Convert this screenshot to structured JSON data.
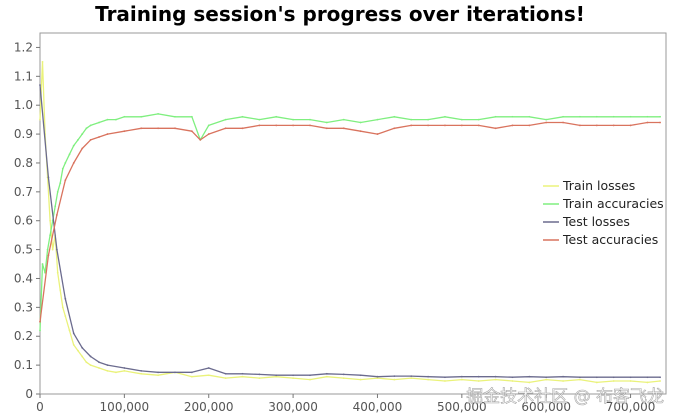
{
  "watermark": "掘金技术社区 @ 布客飞龙",
  "chart_data": {
    "type": "line",
    "title": "Training session's progress over iterations!",
    "xlabel": "",
    "ylabel": "",
    "xlim": [
      0,
      742000
    ],
    "ylim": [
      0,
      1.25
    ],
    "grid": false,
    "legend_position": "right",
    "x_ticks": [
      0,
      100000,
      200000,
      300000,
      400000,
      500000,
      600000,
      700000
    ],
    "x_tick_labels": [
      "0",
      "100,000",
      "200,000",
      "300,000",
      "400,000",
      "500,000",
      "600,000",
      "700,000"
    ],
    "y_ticks": [
      0,
      0.1,
      0.2,
      0.3,
      0.4,
      0.5,
      0.6,
      0.7,
      0.8,
      0.9,
      1.0,
      1.1,
      1.2
    ],
    "y_tick_labels": [
      "0",
      "0.1",
      "0.2",
      "0.3",
      "0.4",
      "0.5",
      "0.6",
      "0.7",
      "0.8",
      "0.9",
      "1.0",
      "1.1",
      "1.2"
    ],
    "series": [
      {
        "name": "Train losses",
        "color": "#eaf27a",
        "x": [
          0,
          3000,
          6000,
          9000,
          12000,
          15000,
          18000,
          21000,
          24000,
          27000,
          30000,
          35000,
          40000,
          45000,
          50000,
          55000,
          60000,
          70000,
          80000,
          90000,
          100000,
          120000,
          140000,
          160000,
          180000,
          200000,
          220000,
          240000,
          260000,
          280000,
          300000,
          320000,
          340000,
          360000,
          380000,
          400000,
          420000,
          440000,
          460000,
          480000,
          500000,
          520000,
          540000,
          560000,
          580000,
          600000,
          620000,
          640000,
          660000,
          680000,
          700000,
          720000,
          735000
        ],
        "y": [
          0.95,
          1.15,
          0.9,
          0.75,
          0.6,
          0.5,
          0.55,
          0.42,
          0.36,
          0.3,
          0.27,
          0.22,
          0.17,
          0.15,
          0.13,
          0.11,
          0.1,
          0.09,
          0.08,
          0.075,
          0.08,
          0.07,
          0.065,
          0.075,
          0.06,
          0.065,
          0.055,
          0.06,
          0.055,
          0.06,
          0.055,
          0.05,
          0.06,
          0.055,
          0.05,
          0.055,
          0.05,
          0.055,
          0.05,
          0.045,
          0.05,
          0.045,
          0.05,
          0.045,
          0.04,
          0.05,
          0.045,
          0.05,
          0.04,
          0.045,
          0.045,
          0.04,
          0.045
        ]
      },
      {
        "name": "Train accuracies",
        "color": "#7fef7f",
        "x": [
          0,
          3000,
          6000,
          9000,
          12000,
          15000,
          18000,
          21000,
          24000,
          27000,
          30000,
          35000,
          40000,
          45000,
          50000,
          55000,
          60000,
          70000,
          80000,
          90000,
          100000,
          120000,
          140000,
          160000,
          180000,
          190000,
          200000,
          220000,
          240000,
          260000,
          280000,
          300000,
          320000,
          340000,
          360000,
          380000,
          400000,
          420000,
          440000,
          460000,
          480000,
          500000,
          520000,
          540000,
          560000,
          580000,
          600000,
          620000,
          640000,
          660000,
          680000,
          700000,
          720000,
          735000
        ],
        "y": [
          0.22,
          0.45,
          0.42,
          0.5,
          0.55,
          0.6,
          0.65,
          0.7,
          0.73,
          0.78,
          0.8,
          0.83,
          0.86,
          0.88,
          0.9,
          0.92,
          0.93,
          0.94,
          0.95,
          0.95,
          0.96,
          0.96,
          0.97,
          0.96,
          0.96,
          0.88,
          0.93,
          0.95,
          0.96,
          0.95,
          0.96,
          0.95,
          0.95,
          0.94,
          0.95,
          0.94,
          0.95,
          0.96,
          0.95,
          0.95,
          0.96,
          0.95,
          0.95,
          0.96,
          0.96,
          0.96,
          0.95,
          0.96,
          0.96,
          0.96,
          0.96,
          0.96,
          0.96,
          0.96
        ]
      },
      {
        "name": "Test losses",
        "color": "#6b6b8e",
        "x": [
          0,
          10000,
          20000,
          30000,
          40000,
          50000,
          60000,
          70000,
          80000,
          100000,
          120000,
          140000,
          160000,
          180000,
          200000,
          220000,
          240000,
          260000,
          280000,
          300000,
          320000,
          340000,
          360000,
          380000,
          400000,
          420000,
          440000,
          460000,
          480000,
          500000,
          520000,
          540000,
          560000,
          580000,
          600000,
          620000,
          640000,
          660000,
          680000,
          700000,
          720000,
          735000
        ],
        "y": [
          1.07,
          0.75,
          0.5,
          0.33,
          0.21,
          0.16,
          0.13,
          0.11,
          0.1,
          0.09,
          0.08,
          0.075,
          0.075,
          0.075,
          0.09,
          0.07,
          0.07,
          0.068,
          0.065,
          0.065,
          0.065,
          0.07,
          0.068,
          0.065,
          0.06,
          0.062,
          0.062,
          0.06,
          0.058,
          0.06,
          0.06,
          0.06,
          0.058,
          0.06,
          0.058,
          0.06,
          0.058,
          0.058,
          0.058,
          0.058,
          0.058,
          0.058
        ]
      },
      {
        "name": "Test accuracies",
        "color": "#d9735e",
        "x": [
          0,
          10000,
          20000,
          30000,
          40000,
          50000,
          60000,
          70000,
          80000,
          100000,
          120000,
          140000,
          160000,
          180000,
          190000,
          200000,
          220000,
          240000,
          260000,
          280000,
          300000,
          320000,
          340000,
          360000,
          380000,
          400000,
          420000,
          440000,
          460000,
          480000,
          500000,
          520000,
          540000,
          560000,
          580000,
          600000,
          620000,
          640000,
          660000,
          680000,
          700000,
          720000,
          735000
        ],
        "y": [
          0.25,
          0.48,
          0.62,
          0.74,
          0.8,
          0.85,
          0.88,
          0.89,
          0.9,
          0.91,
          0.92,
          0.92,
          0.92,
          0.91,
          0.88,
          0.9,
          0.92,
          0.92,
          0.93,
          0.93,
          0.93,
          0.93,
          0.92,
          0.92,
          0.91,
          0.9,
          0.92,
          0.93,
          0.93,
          0.93,
          0.93,
          0.93,
          0.92,
          0.93,
          0.93,
          0.94,
          0.94,
          0.93,
          0.93,
          0.93,
          0.93,
          0.94,
          0.94
        ]
      }
    ]
  }
}
